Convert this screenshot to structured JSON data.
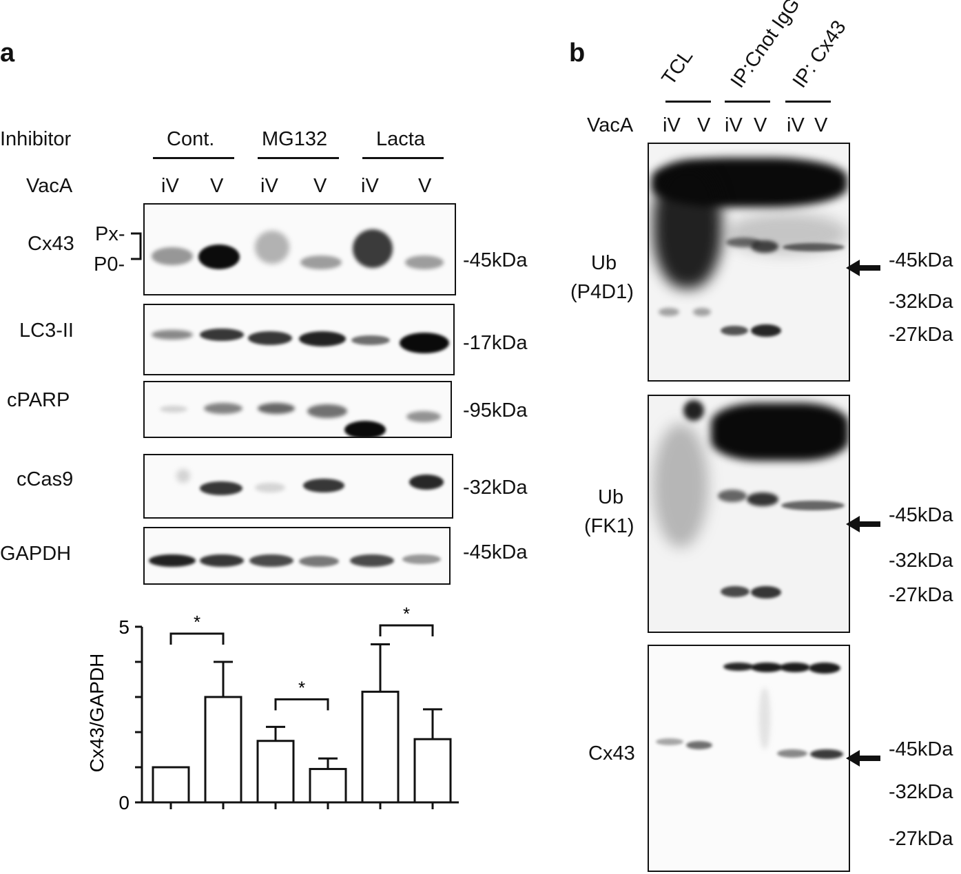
{
  "panel_a": {
    "label": "a",
    "inhibitor_label": "Inhibitor",
    "vaca_label": "VacA",
    "groups": [
      "Cont.",
      "MG132",
      "Lacta"
    ],
    "lanes": [
      "iV",
      "V",
      "iV",
      "V",
      "iV",
      "V"
    ],
    "blots": [
      {
        "name": "Cx43",
        "marker": "-45kDa",
        "bands": [
          "Px-",
          "P0-"
        ]
      },
      {
        "name": "LC3-II",
        "marker": "-17kDa"
      },
      {
        "name": "cPARP",
        "marker": "-95kDa"
      },
      {
        "name": "cCas9",
        "marker": "-32kDa"
      },
      {
        "name": "GAPDH",
        "marker": "-45kDa"
      }
    ]
  },
  "panel_b": {
    "label": "b",
    "vaca_label": "VacA",
    "groups": [
      "TCL",
      "IP:Cnot IgG",
      "IP: Cx43"
    ],
    "lanes": [
      "iV",
      "V",
      "iV",
      "V",
      "iV",
      "V"
    ],
    "blots": [
      {
        "name_line1": "Ub",
        "name_line2": "(P4D1)",
        "markers": [
          "-45kDa",
          "-32kDa",
          "-27kDa"
        ]
      },
      {
        "name_line1": "Ub",
        "name_line2": "(FK1)",
        "markers": [
          "-45kDa",
          "-32kDa",
          "-27kDa"
        ]
      },
      {
        "name_line1": "Cx43",
        "name_line2": "",
        "markers": [
          "-45kDa",
          "-32kDa",
          "-27kDa"
        ]
      }
    ]
  },
  "chart_data": {
    "type": "bar",
    "ylabel": "Cx43/GAPDH",
    "ylim": [
      0,
      5
    ],
    "yticks": [
      "0",
      "5"
    ],
    "values": [
      1.0,
      3.0,
      1.75,
      0.95,
      3.15,
      1.8
    ],
    "errors": [
      0,
      1.0,
      0.4,
      0.3,
      1.35,
      0.85
    ],
    "significance": [
      {
        "pair": [
          0,
          1
        ],
        "label": "*"
      },
      {
        "pair": [
          2,
          3
        ],
        "label": "*"
      },
      {
        "pair": [
          4,
          5
        ],
        "label": "*"
      }
    ]
  }
}
